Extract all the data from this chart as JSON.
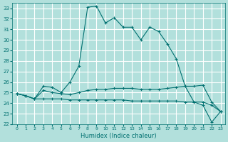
{
  "xlabel": "Humidex (Indice chaleur)",
  "ylabel": "",
  "xlim": [
    -0.5,
    23.5
  ],
  "ylim": [
    22,
    33.5
  ],
  "yticks": [
    22,
    23,
    24,
    25,
    26,
    27,
    28,
    29,
    30,
    31,
    32,
    33
  ],
  "xticks": [
    0,
    1,
    2,
    3,
    4,
    5,
    6,
    7,
    8,
    9,
    10,
    11,
    12,
    13,
    14,
    15,
    16,
    17,
    18,
    19,
    20,
    21,
    22,
    23
  ],
  "bg_color": "#b2e0dc",
  "grid_color": "#ffffff",
  "line_color": "#007070",
  "lines": [
    {
      "x": [
        0,
        1,
        2,
        3,
        4,
        5,
        6,
        7,
        8,
        9,
        10,
        11,
        12,
        13,
        14,
        15,
        16,
        17,
        18,
        19,
        20,
        21,
        22,
        23
      ],
      "y": [
        24.9,
        24.7,
        24.4,
        25.6,
        25.5,
        25.0,
        26.0,
        27.5,
        33.1,
        33.2,
        31.6,
        32.1,
        31.2,
        31.2,
        30.0,
        31.2,
        30.8,
        29.6,
        28.2,
        25.6,
        24.1,
        23.8,
        22.2,
        23.2
      ],
      "marker": "+"
    },
    {
      "x": [
        0,
        1,
        2,
        3,
        4,
        5,
        6,
        7,
        8,
        9,
        10,
        11,
        12,
        13,
        14,
        15,
        16,
        17,
        18,
        19,
        20,
        21,
        22,
        23
      ],
      "y": [
        24.9,
        24.7,
        24.4,
        25.2,
        25.0,
        24.9,
        24.8,
        25.0,
        25.2,
        25.3,
        25.3,
        25.4,
        25.4,
        25.4,
        25.3,
        25.3,
        25.3,
        25.4,
        25.5,
        25.6,
        25.6,
        25.7,
        24.1,
        23.2
      ],
      "marker": "+"
    },
    {
      "x": [
        0,
        1,
        2,
        3,
        4,
        5,
        6,
        7,
        8,
        9,
        10,
        11,
        12,
        13,
        14,
        15,
        16,
        17,
        18,
        19,
        20,
        21,
        22,
        23
      ],
      "y": [
        24.9,
        24.7,
        24.4,
        24.4,
        24.4,
        24.4,
        24.3,
        24.3,
        24.3,
        24.3,
        24.3,
        24.3,
        24.3,
        24.2,
        24.2,
        24.2,
        24.2,
        24.2,
        24.2,
        24.1,
        24.1,
        24.1,
        23.8,
        23.2
      ],
      "marker": "+"
    }
  ]
}
